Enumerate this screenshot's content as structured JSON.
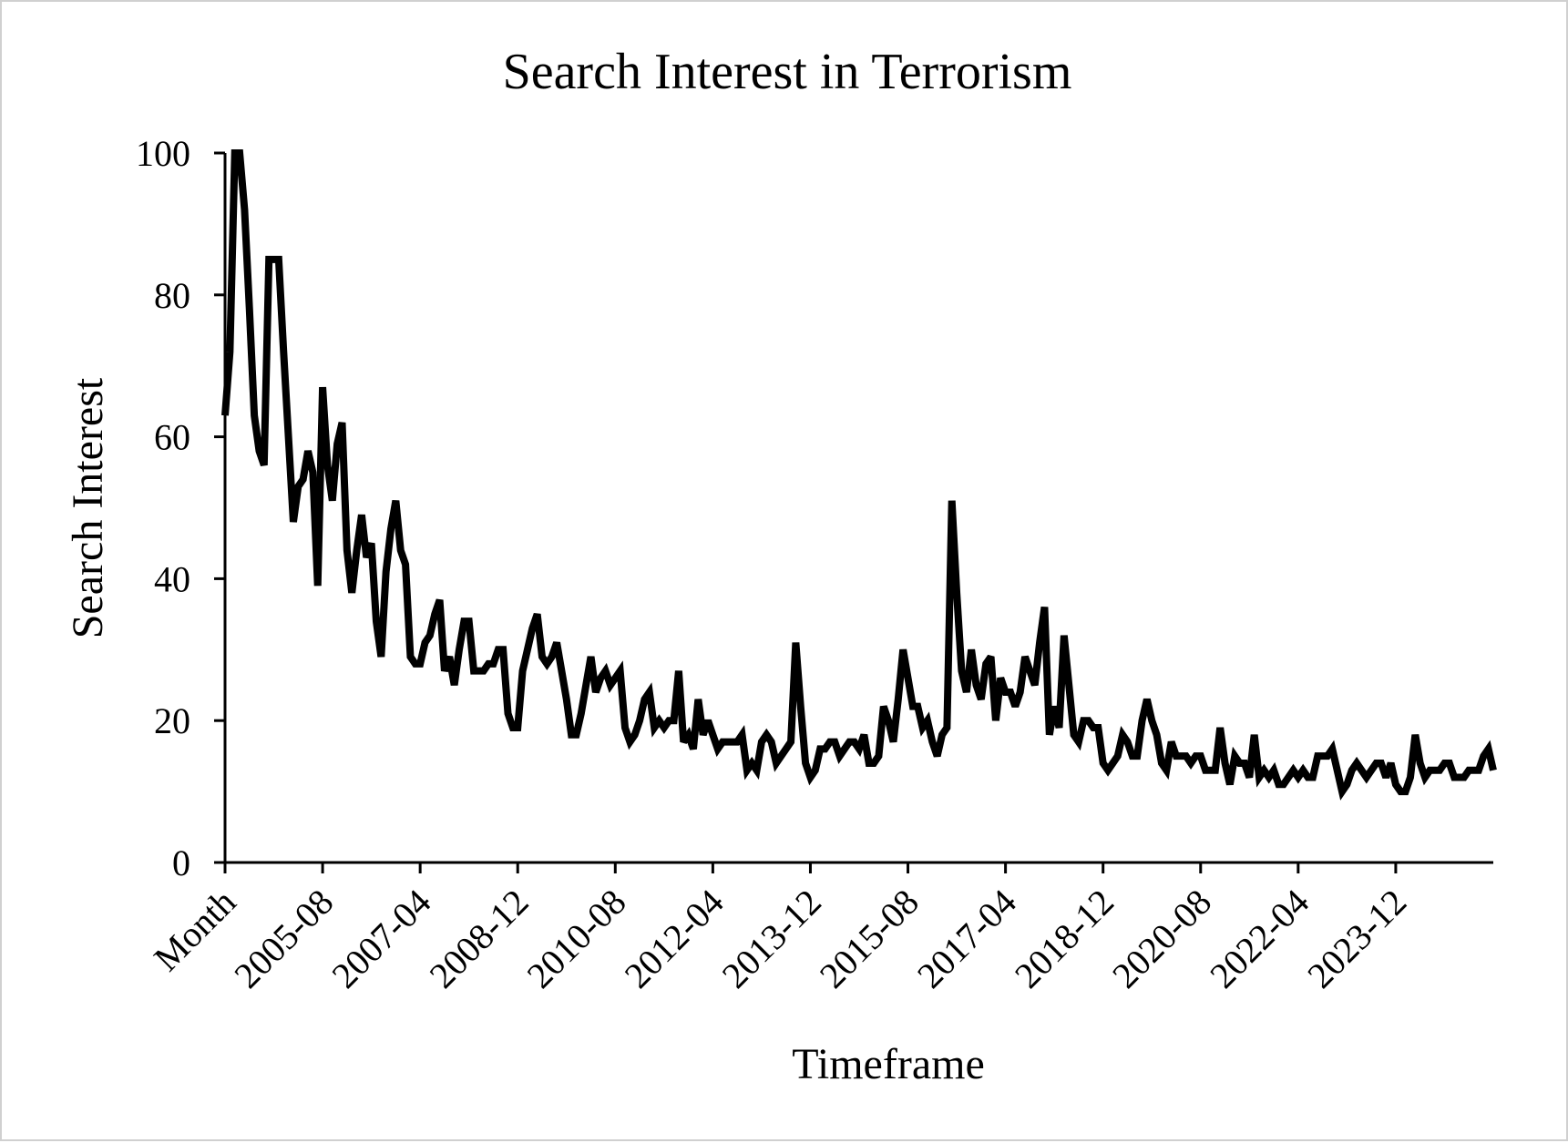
{
  "chart_data": {
    "type": "line",
    "title": "Search Interest in Terrorism",
    "xlabel": "Timeframe",
    "ylabel": "Search Interest",
    "ylim": [
      0,
      100
    ],
    "y_ticks": [
      0,
      20,
      40,
      60,
      80,
      100
    ],
    "x_tick_labels": [
      "Month",
      "2005-08",
      "2007-04",
      "2008-12",
      "2010-08",
      "2012-04",
      "2013-12",
      "2015-08",
      "2017-04",
      "2018-12",
      "2020-08",
      "2022-04",
      "2023-12"
    ],
    "grid": false,
    "legend": "none",
    "line_color": "#000000",
    "series": [
      {
        "values": [
          63,
          72,
          100,
          100,
          92,
          78,
          63,
          58,
          56,
          85,
          85,
          85,
          72,
          60,
          48,
          53,
          54,
          58,
          55,
          39,
          67,
          56,
          51,
          59,
          62,
          44,
          38,
          44,
          49,
          43,
          45,
          34,
          29,
          41,
          47,
          51,
          44,
          42,
          29,
          28,
          28,
          31,
          32,
          35,
          37,
          27,
          29,
          25,
          30,
          34,
          34,
          27,
          27,
          27,
          28,
          28,
          30,
          30,
          21,
          19,
          19,
          27,
          30,
          33,
          35,
          29,
          28,
          29,
          31,
          27,
          23,
          18,
          18,
          21,
          25,
          29,
          24,
          26,
          27,
          25,
          26,
          27,
          19,
          17,
          18,
          20,
          23,
          24,
          19,
          20,
          19,
          20,
          20,
          27,
          17,
          18,
          16,
          23,
          18,
          20,
          18,
          16,
          17,
          17,
          17,
          17,
          18,
          13,
          14,
          13,
          17,
          18,
          17,
          14,
          15,
          16,
          17,
          31,
          22,
          14,
          12,
          13,
          16,
          16,
          17,
          17,
          15,
          16,
          17,
          17,
          16,
          18,
          14,
          14,
          15,
          22,
          20,
          17,
          23,
          30,
          26,
          22,
          22,
          19,
          20,
          17,
          15,
          18,
          19,
          51,
          38,
          27,
          24,
          30,
          25,
          23,
          28,
          29,
          20,
          26,
          24,
          24,
          22,
          24,
          29,
          27,
          25,
          31,
          36,
          18,
          22,
          19,
          32,
          25,
          18,
          17,
          20,
          20,
          19,
          19,
          14,
          13,
          14,
          15,
          18,
          17,
          15,
          15,
          20,
          23,
          20,
          18,
          14,
          13,
          17,
          15,
          15,
          15,
          14,
          15,
          15,
          13,
          13,
          13,
          19,
          14,
          11,
          15,
          14,
          14,
          12,
          18,
          12,
          13,
          12,
          13,
          11,
          11,
          12,
          13,
          12,
          13,
          12,
          12,
          15,
          15,
          15,
          16,
          13,
          10,
          11,
          13,
          14,
          13,
          12,
          13,
          14,
          14,
          12,
          14,
          11,
          10,
          10,
          12,
          18,
          14,
          12,
          13,
          13,
          13,
          14,
          14,
          12,
          12,
          12,
          13,
          13,
          13,
          15,
          16,
          13
        ]
      }
    ]
  }
}
